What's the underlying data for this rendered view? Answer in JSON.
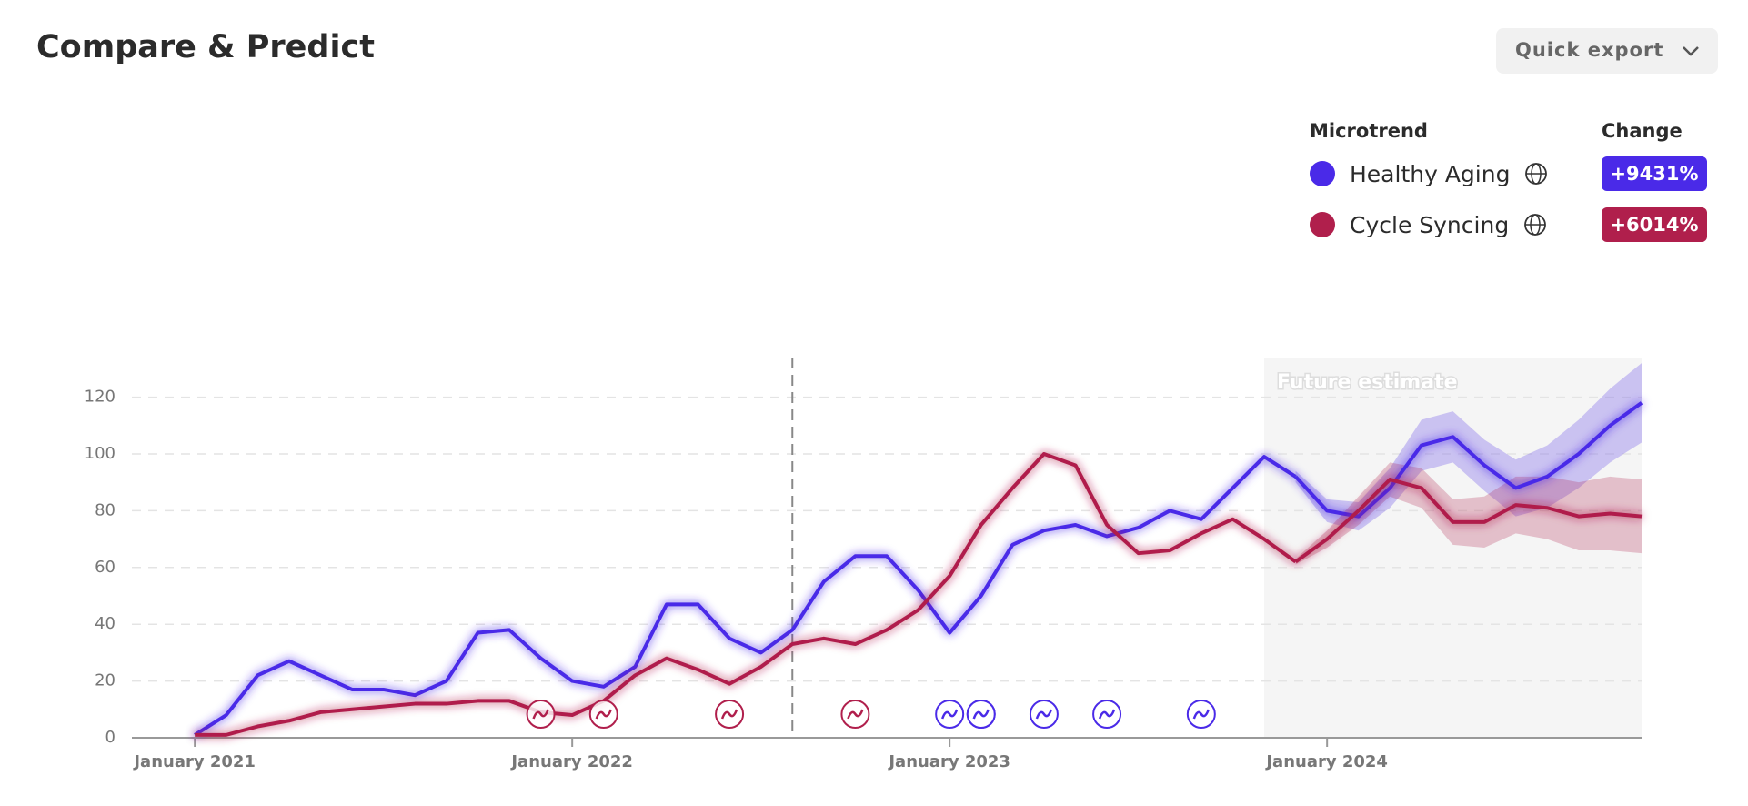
{
  "header": {
    "title": "Compare & Predict",
    "export_button": "Quick export"
  },
  "legend": {
    "name_header": "Microtrend",
    "change_header": "Change"
  },
  "chart_data": {
    "type": "line",
    "annotation": "Future estimate",
    "future_start": "2023-11",
    "reference_line_x": "2022-08",
    "x": [
      "2021-01",
      "2021-02",
      "2021-03",
      "2021-04",
      "2021-05",
      "2021-06",
      "2021-07",
      "2021-08",
      "2021-09",
      "2021-10",
      "2021-11",
      "2021-12",
      "2022-01",
      "2022-02",
      "2022-03",
      "2022-04",
      "2022-05",
      "2022-06",
      "2022-07",
      "2022-08",
      "2022-09",
      "2022-10",
      "2022-11",
      "2022-12",
      "2023-01",
      "2023-02",
      "2023-03",
      "2023-04",
      "2023-05",
      "2023-06",
      "2023-07",
      "2023-08",
      "2023-09",
      "2023-10",
      "2023-11",
      "2023-12",
      "2024-01",
      "2024-02",
      "2024-03",
      "2024-04",
      "2024-05",
      "2024-06",
      "2024-07",
      "2024-08",
      "2024-09",
      "2024-10",
      "2024-11"
    ],
    "xlim": [
      "2020-11",
      "2024-11"
    ],
    "xticks": [
      {
        "value": "2021-01",
        "label": "January 2021"
      },
      {
        "value": "2022-01",
        "label": "January 2022"
      },
      {
        "value": "2023-01",
        "label": "January 2023"
      },
      {
        "value": "2024-01",
        "label": "January 2024"
      }
    ],
    "ylim": [
      0,
      133
    ],
    "yticks": [
      0,
      20,
      40,
      60,
      80,
      100,
      120
    ],
    "grid": true,
    "series": [
      {
        "name": "Healthy Aging",
        "color": "#4a2ae8",
        "change": {
          "value": 9431,
          "label": "+9431%"
        },
        "values": [
          1,
          8,
          22,
          27,
          22,
          17,
          17,
          15,
          20,
          37,
          38,
          28,
          20,
          18,
          25,
          47,
          47,
          35,
          30,
          38,
          55,
          64,
          64,
          52,
          37,
          50,
          68,
          73,
          75,
          71,
          74,
          80,
          77,
          88,
          99,
          92,
          null,
          null,
          null,
          null,
          null,
          null,
          null,
          null,
          null,
          null,
          null
        ],
        "forecast": [
          null,
          null,
          null,
          null,
          null,
          null,
          null,
          null,
          null,
          null,
          null,
          null,
          null,
          null,
          null,
          null,
          null,
          null,
          null,
          null,
          null,
          null,
          null,
          null,
          null,
          null,
          null,
          null,
          null,
          null,
          null,
          null,
          null,
          null,
          null,
          92,
          80,
          78,
          88,
          103,
          106,
          96,
          88,
          92,
          100,
          110,
          118
        ],
        "lower": [
          null,
          null,
          null,
          null,
          null,
          null,
          null,
          null,
          null,
          null,
          null,
          null,
          null,
          null,
          null,
          null,
          null,
          null,
          null,
          null,
          null,
          null,
          null,
          null,
          null,
          null,
          null,
          null,
          null,
          null,
          null,
          null,
          null,
          null,
          null,
          90,
          76,
          73,
          81,
          94,
          97,
          87,
          78,
          81,
          88,
          97,
          104
        ],
        "upper": [
          null,
          null,
          null,
          null,
          null,
          null,
          null,
          null,
          null,
          null,
          null,
          null,
          null,
          null,
          null,
          null,
          null,
          null,
          null,
          null,
          null,
          null,
          null,
          null,
          null,
          null,
          null,
          null,
          null,
          null,
          null,
          null,
          null,
          null,
          null,
          94,
          84,
          83,
          95,
          112,
          115,
          105,
          98,
          103,
          112,
          123,
          132
        ],
        "events": [
          "2023-01",
          "2023-02",
          "2023-02",
          "2023-04",
          "2023-06",
          "2023-09"
        ]
      },
      {
        "name": "Cycle Syncing",
        "color": "#b01f4c",
        "change": {
          "value": 6014,
          "label": "+6014%"
        },
        "values": [
          1,
          1,
          4,
          6,
          9,
          10,
          11,
          12,
          12,
          13,
          13,
          9,
          8,
          13,
          22,
          28,
          24,
          19,
          25,
          33,
          35,
          33,
          38,
          45,
          57,
          75,
          88,
          100,
          96,
          75,
          65,
          66,
          72,
          77,
          70,
          62,
          null,
          null,
          null,
          null,
          null,
          null,
          null,
          null,
          null,
          null,
          null
        ],
        "forecast": [
          null,
          null,
          null,
          null,
          null,
          null,
          null,
          null,
          null,
          null,
          null,
          null,
          null,
          null,
          null,
          null,
          null,
          null,
          null,
          null,
          null,
          null,
          null,
          null,
          null,
          null,
          null,
          null,
          null,
          null,
          null,
          null,
          null,
          null,
          null,
          62,
          70,
          80,
          91,
          88,
          76,
          76,
          82,
          81,
          78,
          79,
          78
        ],
        "lower": [
          null,
          null,
          null,
          null,
          null,
          null,
          null,
          null,
          null,
          null,
          null,
          null,
          null,
          null,
          null,
          null,
          null,
          null,
          null,
          null,
          null,
          null,
          null,
          null,
          null,
          null,
          null,
          null,
          null,
          null,
          null,
          null,
          null,
          null,
          null,
          61,
          67,
          75,
          85,
          81,
          68,
          67,
          72,
          70,
          66,
          66,
          65
        ],
        "upper": [
          null,
          null,
          null,
          null,
          null,
          null,
          null,
          null,
          null,
          null,
          null,
          null,
          null,
          null,
          null,
          null,
          null,
          null,
          null,
          null,
          null,
          null,
          null,
          null,
          null,
          null,
          null,
          null,
          null,
          null,
          null,
          null,
          null,
          null,
          null,
          63,
          73,
          85,
          97,
          95,
          84,
          85,
          92,
          92,
          90,
          92,
          91
        ],
        "events": [
          "2021-12",
          "2022-02",
          "2022-06",
          "2022-10"
        ]
      }
    ]
  }
}
